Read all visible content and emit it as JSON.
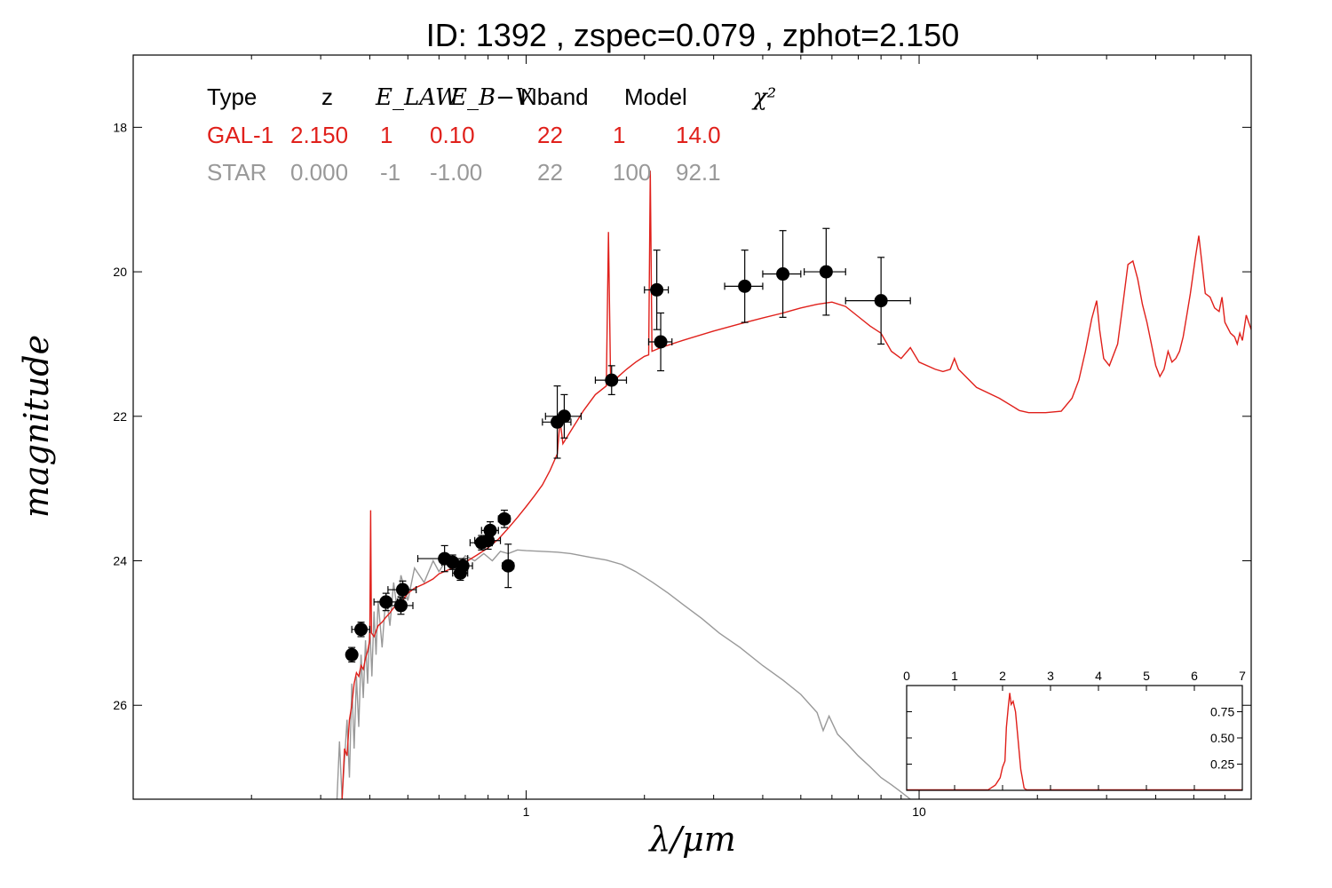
{
  "title": "ID:  1392  , zspec=0.079 , zphot=2.150",
  "chart_data": {
    "type": "scatter",
    "title": "ID:  1392  , zspec=0.079 , zphot=2.150",
    "xlabel": "λ/μm",
    "ylabel": "magnitude",
    "x_scale": "log",
    "y_inverted": true,
    "xlim": [
      0.1,
      70
    ],
    "ylim": [
      27.3,
      17.0
    ],
    "x_ticks": [
      {
        "v": 1,
        "label": "1"
      },
      {
        "v": 10,
        "label": "10"
      }
    ],
    "y_ticks": [
      {
        "v": 18,
        "label": "18"
      },
      {
        "v": 20,
        "label": "20"
      },
      {
        "v": 22,
        "label": "22"
      },
      {
        "v": 24,
        "label": "24"
      },
      {
        "v": 26,
        "label": "26"
      }
    ],
    "colors": {
      "galaxy": "#e0201b",
      "star": "#999999",
      "points": "#000000"
    },
    "fit_table": {
      "headers": [
        "Type",
        "z",
        "E_LAW",
        "E_B−V",
        "Nband",
        "Model",
        "χ²"
      ],
      "rows": [
        {
          "name": "galaxy",
          "color": "#e0201b",
          "values": [
            "GAL-1",
            "2.150",
            "1",
            "0.10",
            "22",
            "1",
            "14.0"
          ]
        },
        {
          "name": "star",
          "color": "#999999",
          "values": [
            "STAR",
            "0.000",
            "-1",
            "-1.00",
            "22",
            "100",
            "92.1"
          ]
        }
      ]
    },
    "photometry": [
      {
        "x": 0.36,
        "y": 25.3,
        "xerr": 0.01,
        "yerr": 0.1
      },
      {
        "x": 0.38,
        "y": 24.95,
        "xerr": 0.02,
        "yerr": 0.1
      },
      {
        "x": 0.44,
        "y": 24.57,
        "xerr": 0.03,
        "yerr": 0.12
      },
      {
        "x": 0.48,
        "y": 24.62,
        "xerr": 0.035,
        "yerr": 0.12
      },
      {
        "x": 0.485,
        "y": 24.4,
        "xerr": 0.04,
        "yerr": 0.12
      },
      {
        "x": 0.62,
        "y": 23.97,
        "xerr": 0.09,
        "yerr": 0.18
      },
      {
        "x": 0.65,
        "y": 24.02,
        "xerr": 0.04,
        "yerr": 0.1
      },
      {
        "x": 0.68,
        "y": 24.17,
        "xerr": 0.03,
        "yerr": 0.1
      },
      {
        "x": 0.69,
        "y": 24.07,
        "xerr": 0.04,
        "yerr": 0.1
      },
      {
        "x": 0.77,
        "y": 23.75,
        "xerr": 0.05,
        "yerr": 0.1
      },
      {
        "x": 0.8,
        "y": 23.72,
        "xerr": 0.06,
        "yerr": 0.12
      },
      {
        "x": 0.81,
        "y": 23.58,
        "xerr": 0.04,
        "yerr": 0.12
      },
      {
        "x": 0.88,
        "y": 23.42,
        "xerr": 0.03,
        "yerr": 0.12
      },
      {
        "x": 0.9,
        "y": 24.07,
        "xerr": 0.03,
        "yerr": 0.3
      },
      {
        "x": 1.2,
        "y": 22.08,
        "xerr": 0.1,
        "yerr": 0.5
      },
      {
        "x": 1.25,
        "y": 22.0,
        "xerr": 0.13,
        "yerr": 0.3
      },
      {
        "x": 1.65,
        "y": 21.5,
        "xerr": 0.15,
        "yerr": 0.2
      },
      {
        "x": 2.15,
        "y": 20.25,
        "xerr": 0.15,
        "yerr": 0.55
      },
      {
        "x": 2.2,
        "y": 20.97,
        "xerr": 0.15,
        "yerr": 0.4
      },
      {
        "x": 3.6,
        "y": 20.2,
        "xerr": 0.4,
        "yerr": 0.5
      },
      {
        "x": 4.5,
        "y": 20.03,
        "xerr": 0.5,
        "yerr": 0.6
      },
      {
        "x": 5.8,
        "y": 20.0,
        "xerr": 0.7,
        "yerr": 0.6
      },
      {
        "x": 8.0,
        "y": 20.4,
        "xerr": 1.5,
        "yerr": 0.6
      }
    ],
    "galaxy_model": [
      [
        0.34,
        27.3
      ],
      [
        0.345,
        26.6
      ],
      [
        0.35,
        26.7
      ],
      [
        0.355,
        26.2
      ],
      [
        0.36,
        26.0
      ],
      [
        0.365,
        25.7
      ],
      [
        0.37,
        25.55
      ],
      [
        0.375,
        25.6
      ],
      [
        0.38,
        25.45
      ],
      [
        0.385,
        25.5
      ],
      [
        0.39,
        25.35
      ],
      [
        0.395,
        25.25
      ],
      [
        0.4,
        25.1
      ],
      [
        0.402,
        23.3
      ],
      [
        0.404,
        25.0
      ],
      [
        0.41,
        25.05
      ],
      [
        0.42,
        24.9
      ],
      [
        0.43,
        24.85
      ],
      [
        0.44,
        24.78
      ],
      [
        0.45,
        24.72
      ],
      [
        0.46,
        24.65
      ],
      [
        0.48,
        24.58
      ],
      [
        0.5,
        24.45
      ],
      [
        0.52,
        24.38
      ],
      [
        0.55,
        24.32
      ],
      [
        0.58,
        24.25
      ],
      [
        0.6,
        24.18
      ],
      [
        0.65,
        24.1
      ],
      [
        0.7,
        24.02
      ],
      [
        0.75,
        23.92
      ],
      [
        0.8,
        23.82
      ],
      [
        0.85,
        23.7
      ],
      [
        0.9,
        23.55
      ],
      [
        0.95,
        23.4
      ],
      [
        1.0,
        23.25
      ],
      [
        1.05,
        23.1
      ],
      [
        1.1,
        22.95
      ],
      [
        1.15,
        22.75
      ],
      [
        1.2,
        22.52
      ],
      [
        1.22,
        22.05
      ],
      [
        1.24,
        22.38
      ],
      [
        1.3,
        22.2
      ],
      [
        1.4,
        21.92
      ],
      [
        1.5,
        21.7
      ],
      [
        1.6,
        21.58
      ],
      [
        1.62,
        19.45
      ],
      [
        1.64,
        21.5
      ],
      [
        1.7,
        21.47
      ],
      [
        1.8,
        21.35
      ],
      [
        1.9,
        21.25
      ],
      [
        2.0,
        21.17
      ],
      [
        2.05,
        21.15
      ],
      [
        2.07,
        18.6
      ],
      [
        2.09,
        21.1
      ],
      [
        2.2,
        21.05
      ],
      [
        2.5,
        20.95
      ],
      [
        3.0,
        20.82
      ],
      [
        3.5,
        20.72
      ],
      [
        4.0,
        20.64
      ],
      [
        4.5,
        20.57
      ],
      [
        5.0,
        20.5
      ],
      [
        5.5,
        20.45
      ],
      [
        6.0,
        20.42
      ],
      [
        6.5,
        20.48
      ],
      [
        7.0,
        20.62
      ],
      [
        7.5,
        20.75
      ],
      [
        8.0,
        20.85
      ],
      [
        8.5,
        21.1
      ],
      [
        9.0,
        21.2
      ],
      [
        9.5,
        21.05
      ],
      [
        10.0,
        21.25
      ],
      [
        11.0,
        21.35
      ],
      [
        11.5,
        21.38
      ],
      [
        12.0,
        21.35
      ],
      [
        12.3,
        21.2
      ],
      [
        12.6,
        21.35
      ],
      [
        14.0,
        21.6
      ],
      [
        16.0,
        21.75
      ],
      [
        18.0,
        21.92
      ],
      [
        19.0,
        21.95
      ],
      [
        21.0,
        21.95
      ],
      [
        23.0,
        21.93
      ],
      [
        24.5,
        21.75
      ],
      [
        25.5,
        21.5
      ],
      [
        26.5,
        21.1
      ],
      [
        27.5,
        20.65
      ],
      [
        28.3,
        20.4
      ],
      [
        28.8,
        20.8
      ],
      [
        29.5,
        21.2
      ],
      [
        30.5,
        21.3
      ],
      [
        32.0,
        21.0
      ],
      [
        33.0,
        20.45
      ],
      [
        34.0,
        19.9
      ],
      [
        35.0,
        19.85
      ],
      [
        36.0,
        20.1
      ],
      [
        37.0,
        20.45
      ],
      [
        38.0,
        20.7
      ],
      [
        39.0,
        21.0
      ],
      [
        40.0,
        21.3
      ],
      [
        41.0,
        21.45
      ],
      [
        42.0,
        21.35
      ],
      [
        43.0,
        21.1
      ],
      [
        44.0,
        21.25
      ],
      [
        45.0,
        21.2
      ],
      [
        46.0,
        21.1
      ],
      [
        47.0,
        20.9
      ],
      [
        48.0,
        20.6
      ],
      [
        49.0,
        20.3
      ],
      [
        50.5,
        19.8
      ],
      [
        51.5,
        19.5
      ],
      [
        52.5,
        19.9
      ],
      [
        53.5,
        20.3
      ],
      [
        55.0,
        20.35
      ],
      [
        56.5,
        20.5
      ],
      [
        58.0,
        20.55
      ],
      [
        59.0,
        20.35
      ],
      [
        60.0,
        20.7
      ],
      [
        62.0,
        20.85
      ],
      [
        63.5,
        20.9
      ],
      [
        64.5,
        21.0
      ],
      [
        65.5,
        20.85
      ],
      [
        66.5,
        20.95
      ],
      [
        68.0,
        20.6
      ],
      [
        70.0,
        20.8
      ]
    ],
    "star_model": [
      [
        0.33,
        27.3
      ],
      [
        0.335,
        26.5
      ],
      [
        0.34,
        27.3
      ],
      [
        0.35,
        26.2
      ],
      [
        0.355,
        27.0
      ],
      [
        0.36,
        25.7
      ],
      [
        0.365,
        26.6
      ],
      [
        0.37,
        25.6
      ],
      [
        0.375,
        26.3
      ],
      [
        0.38,
        25.3
      ],
      [
        0.385,
        25.9
      ],
      [
        0.39,
        25.1
      ],
      [
        0.395,
        25.7
      ],
      [
        0.4,
        24.9
      ],
      [
        0.405,
        25.6
      ],
      [
        0.41,
        24.7
      ],
      [
        0.415,
        25.3
      ],
      [
        0.42,
        24.55
      ],
      [
        0.43,
        25.2
      ],
      [
        0.44,
        24.45
      ],
      [
        0.45,
        24.9
      ],
      [
        0.46,
        24.3
      ],
      [
        0.47,
        24.7
      ],
      [
        0.48,
        24.2
      ],
      [
        0.5,
        24.55
      ],
      [
        0.52,
        24.1
      ],
      [
        0.55,
        24.3
      ],
      [
        0.58,
        24.0
      ],
      [
        0.6,
        24.15
      ],
      [
        0.63,
        23.97
      ],
      [
        0.66,
        24.1
      ],
      [
        0.7,
        23.93
      ],
      [
        0.74,
        24.0
      ],
      [
        0.78,
        23.9
      ],
      [
        0.82,
        24.0
      ],
      [
        0.86,
        23.87
      ],
      [
        0.9,
        23.9
      ],
      [
        0.95,
        23.85
      ],
      [
        1.0,
        23.86
      ],
      [
        1.1,
        23.87
      ],
      [
        1.2,
        23.88
      ],
      [
        1.3,
        23.9
      ],
      [
        1.45,
        23.95
      ],
      [
        1.6,
        23.99
      ],
      [
        1.75,
        24.05
      ],
      [
        1.9,
        24.15
      ],
      [
        2.1,
        24.3
      ],
      [
        2.3,
        24.45
      ],
      [
        2.5,
        24.6
      ],
      [
        2.8,
        24.8
      ],
      [
        3.1,
        25.0
      ],
      [
        3.5,
        25.2
      ],
      [
        4.0,
        25.45
      ],
      [
        4.5,
        25.65
      ],
      [
        5.0,
        25.85
      ],
      [
        5.5,
        26.1
      ],
      [
        5.7,
        26.35
      ],
      [
        5.9,
        26.15
      ],
      [
        6.2,
        26.4
      ],
      [
        6.6,
        26.55
      ],
      [
        7.0,
        26.7
      ],
      [
        7.5,
        26.85
      ],
      [
        8.0,
        27.0
      ],
      [
        8.5,
        27.1
      ],
      [
        9.0,
        27.2
      ],
      [
        9.5,
        27.3
      ]
    ],
    "inset": {
      "type": "line",
      "xlim": [
        0,
        7
      ],
      "ylim": [
        0,
        1
      ],
      "x_ticks": [
        "0",
        "1",
        "2",
        "3",
        "4",
        "5",
        "6",
        "7"
      ],
      "y_ticks": [
        "0.25",
        "0.50",
        "0.75"
      ],
      "curve": [
        [
          0,
          0.005
        ],
        [
          1.7,
          0.005
        ],
        [
          1.85,
          0.05
        ],
        [
          1.95,
          0.12
        ],
        [
          2.0,
          0.22
        ],
        [
          2.05,
          0.28
        ],
        [
          2.08,
          0.6
        ],
        [
          2.12,
          0.8
        ],
        [
          2.15,
          0.93
        ],
        [
          2.18,
          0.82
        ],
        [
          2.22,
          0.85
        ],
        [
          2.27,
          0.75
        ],
        [
          2.32,
          0.5
        ],
        [
          2.38,
          0.2
        ],
        [
          2.45,
          0.02
        ],
        [
          2.5,
          0.005
        ],
        [
          7,
          0.005
        ]
      ]
    }
  }
}
